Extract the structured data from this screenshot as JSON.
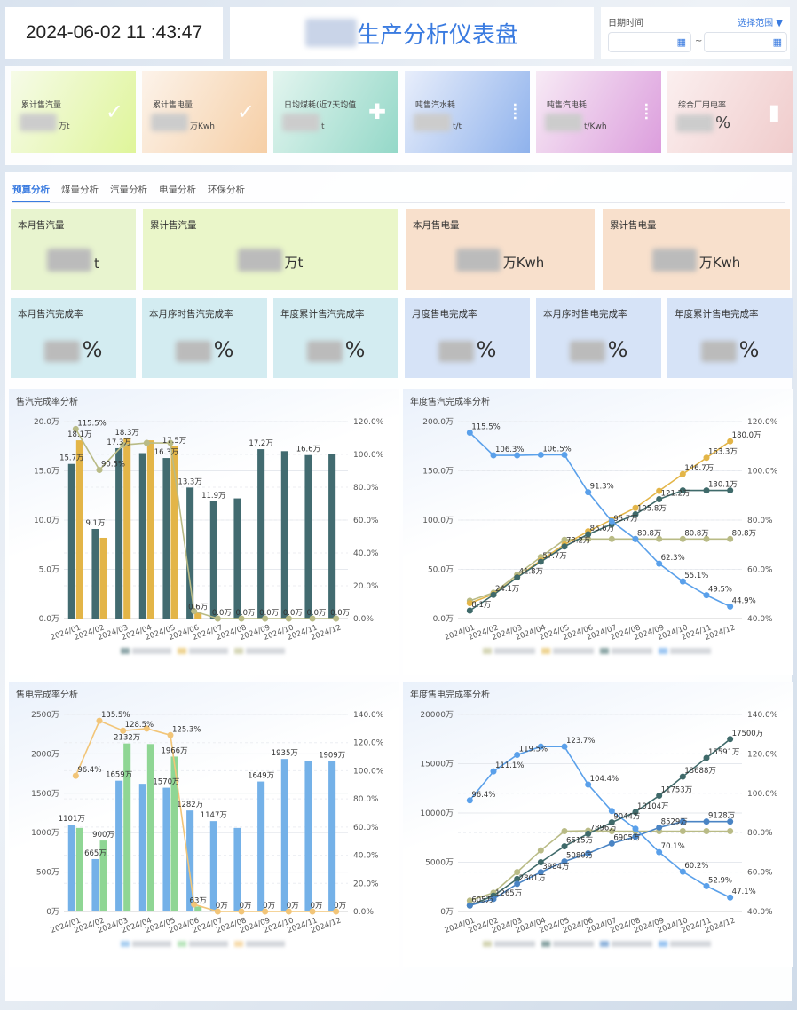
{
  "header": {
    "clock": "2024-06-02 11 :43:47",
    "title": "生产分析仪表盘",
    "date_label": "日期时间",
    "range_label": "选择范围",
    "range_sep": "~"
  },
  "kpis": [
    {
      "title": "累计售汽量",
      "unit": "万t",
      "icon": "bookmark-check-icon",
      "bg": "linear-gradient(120deg,#f6fbe8,#dff59a)"
    },
    {
      "title": "累计售电量",
      "unit": "万Kwh",
      "icon": "bookmark-check-icon",
      "bg": "linear-gradient(120deg,#fcf3ea,#f6cfa6)"
    },
    {
      "title": "日均煤耗(近7天均值",
      "unit": "t",
      "icon": "puzzle-icon",
      "bg": "linear-gradient(120deg,#e3f5ef,#94d8c8)"
    },
    {
      "title": "吨售汽水耗",
      "unit": "t/t",
      "icon": "traffic-light-icon",
      "bg": "linear-gradient(120deg,#e8eefb,#8fb2ec)"
    },
    {
      "title": "吨售汽电耗",
      "unit": "t/Kwh",
      "icon": "traffic-light-icon",
      "bg": "linear-gradient(120deg,#f7eaf5,#dc9edd)"
    },
    {
      "title": "综合厂用电率",
      "unit": "%",
      "icon": "bar-chart-icon",
      "bg": "linear-gradient(120deg,#fbefef,#f0cccc)"
    }
  ],
  "tabs": [
    "预算分析",
    "煤量分析",
    "汽量分析",
    "电量分析",
    "环保分析"
  ],
  "cards_row1": [
    {
      "title": "本月售汽量",
      "unit": "t"
    },
    {
      "title": "累计售汽量",
      "unit": "万t"
    },
    {
      "title": "本月售电量",
      "unit": "万Kwh"
    },
    {
      "title": "累计售电量",
      "unit": "万Kwh"
    }
  ],
  "cards_row2": [
    {
      "title": "本月售汽完成率",
      "unit": "%"
    },
    {
      "title": "本月序时售汽完成率",
      "unit": "%"
    },
    {
      "title": "年度累计售汽完成率",
      "unit": "%"
    },
    {
      "title": "月度售电完成率",
      "unit": "%"
    },
    {
      "title": "本月序时售电完成率",
      "unit": "%"
    },
    {
      "title": "年度累计售电完成率",
      "unit": "%"
    }
  ],
  "chart_data": [
    {
      "type": "bar",
      "title": "售汽完成率分析",
      "categories": [
        "2024/01",
        "2024/02",
        "2024/03",
        "2024/04",
        "2024/05",
        "2024/06",
        "2024/07",
        "2024/08",
        "2024/09",
        "2024/10",
        "2024/11",
        "2024/12"
      ],
      "y_left": {
        "min": 0,
        "max": 20,
        "step": 5,
        "ticks": [
          "0.0万",
          "5.0万",
          "10.0万",
          "15.0万",
          "20.0万"
        ]
      },
      "y_right": {
        "min": 0,
        "max": 120,
        "step": 20,
        "ticks": [
          "0.0%",
          "20.0%",
          "40.0%",
          "60.0%",
          "80.0%",
          "100.0%",
          "120.0%"
        ]
      },
      "series": [
        {
          "type": "bar",
          "axis": "left",
          "color": "#426b70",
          "values": [
            15.7,
            9.1,
            17.3,
            16.8,
            16.3,
            13.3,
            11.9,
            12.2,
            17.2,
            17.0,
            16.6,
            16.7
          ],
          "labels": [
            "15.7万",
            "9.1万",
            "17.3万",
            null,
            "16.3万",
            "13.3万",
            "11.9万",
            null,
            "17.2万",
            null,
            "16.6万",
            null
          ]
        },
        {
          "type": "bar",
          "axis": "left",
          "color": "#e3b548",
          "values": [
            18.1,
            8.2,
            18.3,
            18.1,
            17.5,
            0.6,
            0,
            0,
            0,
            0,
            0,
            0
          ],
          "labels": [
            "18.1万",
            null,
            "18.3万",
            null,
            "17.5万",
            "0.6万",
            "0.0万",
            "0.0万",
            "0.0万",
            "0.0万",
            "0.0万",
            "0.0万"
          ]
        },
        {
          "type": "line",
          "axis": "right",
          "color": "#b9bb86",
          "values": [
            115.5,
            90.5,
            105.8,
            107.0,
            107.0,
            4.5,
            0,
            0,
            0,
            0,
            0,
            0
          ],
          "labels": [
            "115.5%",
            "90.5%",
            null,
            null,
            null,
            null,
            null,
            null,
            null,
            null,
            null,
            null
          ]
        }
      ]
    },
    {
      "type": "line",
      "title": "年度售汽完成率分析",
      "categories": [
        "2024/01",
        "2024/02",
        "2024/03",
        "2024/04",
        "2024/05",
        "2024/06",
        "2024/07",
        "2024/08",
        "2024/09",
        "2024/10",
        "2024/11",
        "2024/12"
      ],
      "y_left": {
        "min": 0,
        "max": 200,
        "step": 50,
        "ticks": [
          "0.0万",
          "50.0万",
          "100.0万",
          "150.0万",
          "200.0万"
        ]
      },
      "y_right": {
        "min": 40,
        "max": 120,
        "step": 20,
        "ticks": [
          "40.0%",
          "60.0%",
          "80.0%",
          "100.0%",
          "120.0%"
        ]
      },
      "series": [
        {
          "type": "line",
          "axis": "left",
          "color": "#b9bb86",
          "values": [
            18.1,
            26.2,
            44.5,
            62.5,
            80.0,
            80.8,
            80.8,
            80.8,
            80.8,
            80.8,
            80.8,
            80.8
          ],
          "labels": [
            null,
            null,
            null,
            null,
            null,
            null,
            null,
            "80.8万",
            null,
            "80.8万",
            null,
            "80.8万"
          ]
        },
        {
          "type": "line",
          "axis": "left",
          "color": "#e3b548",
          "values": [
            15.7,
            24.8,
            42.1,
            59.0,
            75.3,
            88.6,
            100.5,
            112.4,
            129.6,
            146.7,
            163.3,
            180.0
          ],
          "labels": [
            null,
            null,
            null,
            null,
            null,
            null,
            null,
            null,
            null,
            "146.7万",
            "163.3万",
            "180.0万"
          ]
        },
        {
          "type": "line",
          "axis": "left",
          "color": "#3f6a6a",
          "values": [
            8.1,
            24.1,
            41.8,
            57.7,
            73.2,
            85.6,
            95.7,
            105.8,
            121.2,
            130.1,
            130.1,
            130.1
          ],
          "labels": [
            "8.1万",
            "24.1万",
            "41.8万",
            "57.7万",
            "73.2万",
            "85.6万",
            "95.7万",
            "105.8万",
            "121.2万",
            null,
            "130.1万",
            null
          ]
        },
        {
          "type": "line",
          "axis": "right",
          "color": "#5aa0ea",
          "values": [
            115.5,
            106.3,
            106.3,
            106.5,
            106.5,
            91.3,
            79.5,
            72.3,
            62.3,
            55.1,
            49.5,
            44.9
          ],
          "labels": [
            "115.5%",
            "106.3%",
            null,
            "106.5%",
            null,
            "91.3%",
            null,
            null,
            "62.3%",
            "55.1%",
            "49.5%",
            "44.9%"
          ]
        }
      ]
    },
    {
      "type": "bar",
      "title": "售电完成率分析",
      "categories": [
        "2024/01",
        "2024/02",
        "2024/03",
        "2024/04",
        "2024/05",
        "2024/06",
        "2024/07",
        "2024/08",
        "2024/09",
        "2024/10",
        "2024/11",
        "2024/12"
      ],
      "y_left": {
        "min": 0,
        "max": 2500,
        "step": 500,
        "ticks": [
          "0万",
          "500万",
          "1000万",
          "1500万",
          "2000万",
          "2500万"
        ]
      },
      "y_right": {
        "min": 0,
        "max": 140,
        "step": 20,
        "ticks": [
          "0.0%",
          "20.0%",
          "40.0%",
          "60.0%",
          "80.0%",
          "100.0%",
          "120.0%",
          "140.0%"
        ]
      },
      "series": [
        {
          "type": "bar",
          "axis": "left",
          "color": "#74b1e8",
          "values": [
            1101,
            665,
            1659,
            1620,
            1570,
            1282,
            1147,
            1060,
            1649,
            1935,
            1905,
            1909
          ],
          "labels": [
            "1101万",
            "665万",
            "1659万",
            null,
            "1570万",
            "1282万",
            "1147万",
            null,
            "1649万",
            "1935万",
            null,
            "1909万"
          ]
        },
        {
          "type": "bar",
          "axis": "left",
          "color": "#8fd694",
          "values": [
            1060,
            900,
            2132,
            2125,
            1966,
            63,
            0,
            0,
            0,
            0,
            0,
            0
          ],
          "labels": [
            null,
            "900万",
            "2132万",
            null,
            "1966万",
            "63万",
            "0万",
            "0万",
            "0万",
            "0万",
            "0万",
            "0万"
          ]
        },
        {
          "type": "line",
          "axis": "right",
          "color": "#f2c578",
          "values": [
            96.4,
            135.5,
            128.5,
            130.0,
            125.3,
            5.0,
            0,
            0,
            0,
            0,
            0,
            0
          ],
          "labels": [
            "96.4%",
            "135.5%",
            "128.5%",
            null,
            "125.3%",
            null,
            null,
            null,
            null,
            null,
            null,
            null
          ]
        }
      ]
    },
    {
      "type": "line",
      "title": "年度售电完成率分析",
      "categories": [
        "2024/01",
        "2024/02",
        "2024/03",
        "2024/04",
        "2024/05",
        "2024/06",
        "2024/07",
        "2024/08",
        "2024/09",
        "2024/10",
        "2024/11",
        "2024/12"
      ],
      "y_left": {
        "min": 0,
        "max": 20000,
        "step": 5000,
        "ticks": [
          "0万",
          "5000万",
          "10000万",
          "15000万",
          "20000万"
        ]
      },
      "y_right": {
        "min": 40,
        "max": 140,
        "step": 20,
        "ticks": [
          "40.0%",
          "60.0%",
          "80.0%",
          "100.0%",
          "120.0%",
          "140.0%"
        ]
      },
      "series": [
        {
          "type": "line",
          "axis": "left",
          "color": "#b9bb86",
          "values": [
            1100,
            1900,
            4000,
            6200,
            8150,
            8200,
            8150,
            8150,
            8150,
            8150,
            8150,
            8150
          ],
          "labels": [
            null,
            null,
            null,
            null,
            null,
            null,
            null,
            null,
            null,
            null,
            null,
            null
          ]
        },
        {
          "type": "line",
          "axis": "left",
          "color": "#3f6a6a",
          "values": [
            605,
            1600,
            3300,
            5000,
            6615,
            7896,
            9044,
            10104,
            11753,
            13688,
            15591,
            17500
          ],
          "labels": [
            null,
            null,
            null,
            null,
            "6615万",
            "7896万",
            "9044万",
            "10104万",
            "11753万",
            "13688万",
            "15591万",
            "17500万"
          ]
        },
        {
          "type": "line",
          "axis": "left",
          "color": "#4a84c4",
          "values": [
            605,
            1265,
            2801,
            3984,
            5080,
            5900,
            6905,
            7600,
            8529,
            9128,
            9128,
            9128
          ],
          "labels": [
            "605万",
            "1265万",
            "2801万",
            "3984万",
            "5080万",
            null,
            "6905万",
            null,
            "8529万",
            null,
            "9128万",
            null
          ]
        },
        {
          "type": "line",
          "axis": "right",
          "color": "#5aa0ea",
          "values": [
            96.4,
            111.1,
            119.5,
            123.7,
            123.7,
            104.4,
            91.0,
            82.0,
            70.1,
            60.2,
            52.9,
            47.1
          ],
          "labels": [
            "96.4%",
            "111.1%",
            "119.5%",
            null,
            "123.7%",
            "104.4%",
            null,
            null,
            "70.1%",
            "60.2%",
            "52.9%",
            "47.1%"
          ]
        }
      ]
    }
  ]
}
